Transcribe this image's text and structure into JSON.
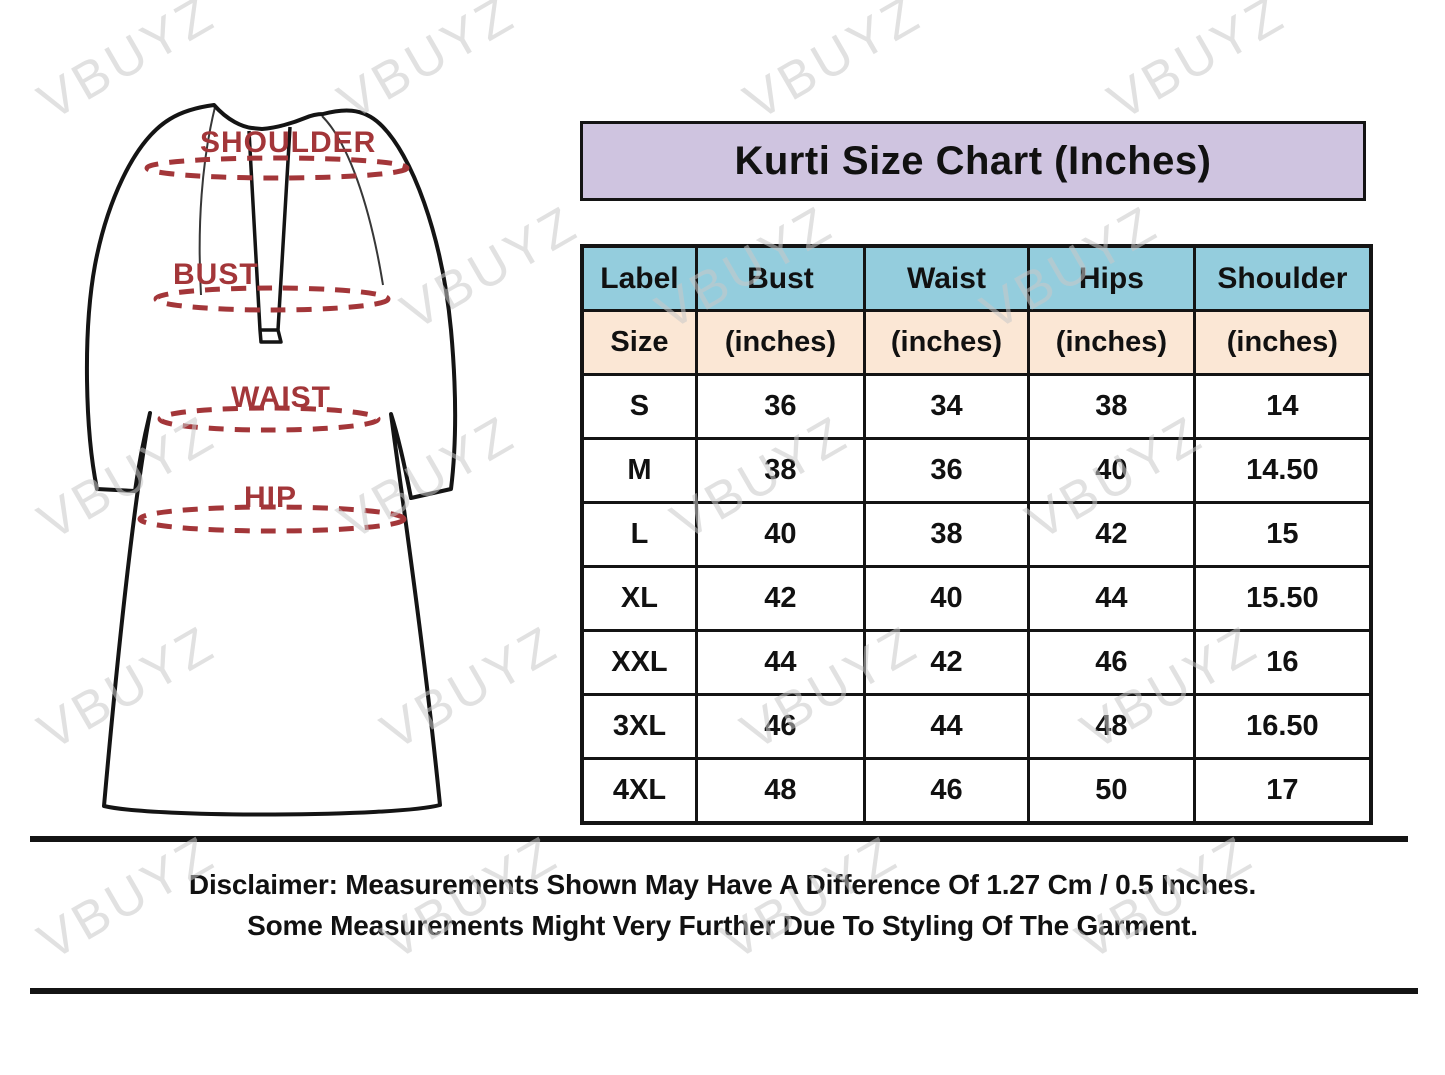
{
  "title": {
    "text": "Kurti Size Chart (Inches)"
  },
  "watermark": {
    "text": "VBUYZ"
  },
  "diagram": {
    "shoulder_label": "SHOULDER",
    "bust_label": "BUST",
    "waist_label": "WAIST",
    "hip_label": "HIP"
  },
  "chart_data": {
    "type": "table",
    "title": "Kurti Size Chart (Inches)",
    "columns": [
      "Label",
      "Bust",
      "Waist",
      "Hips",
      "Shoulder"
    ],
    "sub_columns": [
      "Size",
      "(inches)",
      "(inches)",
      "(inches)",
      "(inches)"
    ],
    "rows": [
      [
        "S",
        "36",
        "34",
        "38",
        "14"
      ],
      [
        "M",
        "38",
        "36",
        "40",
        "14.50"
      ],
      [
        "L",
        "40",
        "38",
        "42",
        "15"
      ],
      [
        "XL",
        "42",
        "40",
        "44",
        "15.50"
      ],
      [
        "XXL",
        "44",
        "42",
        "46",
        "16"
      ],
      [
        "3XL",
        "46",
        "44",
        "48",
        "16.50"
      ],
      [
        "4XL",
        "48",
        "46",
        "50",
        "17"
      ]
    ]
  },
  "disclaimer": {
    "line1": "Disclaimer: Measurements Shown May Have A Difference Of 1.27 Cm / 0.5 Inches.",
    "line2": "Some Measurements Might Very Further Due To Styling Of The Garment."
  },
  "colors": {
    "title_bg": "#cfc4e0",
    "header_bg": "#94cddd",
    "subheader_bg": "#fbe7d5",
    "border": "#141414",
    "text": "#111111",
    "accent_red": "#a33639",
    "watermark": "#c9c9c9"
  }
}
